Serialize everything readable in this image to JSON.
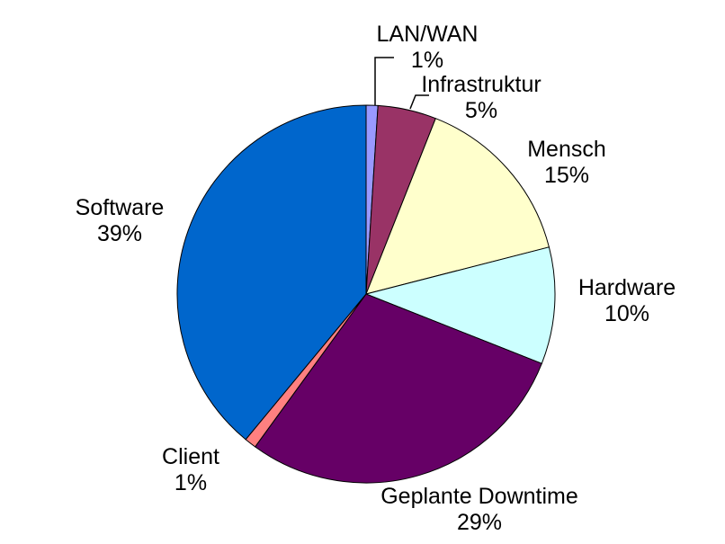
{
  "chart_data": {
    "type": "pie",
    "title": "",
    "start_angle_deg": 0,
    "direction": "clockwise",
    "total": 100,
    "outline_color": "#000000",
    "label_color": "#000000",
    "background": "#FFFFFF",
    "legend_position": "none",
    "slices": [
      {
        "label": "LAN/WAN",
        "value": 1,
        "pct_label": "1%",
        "color": "#9999FF"
      },
      {
        "label": "Infrastruktur",
        "value": 5,
        "pct_label": "5%",
        "color": "#993366"
      },
      {
        "label": "Mensch",
        "value": 15,
        "pct_label": "15%",
        "color": "#FFFFCC"
      },
      {
        "label": "Hardware",
        "value": 10,
        "pct_label": "10%",
        "color": "#CCFFFF"
      },
      {
        "label": "Geplante Downtime",
        "value": 29,
        "pct_label": "29%",
        "color": "#660066"
      },
      {
        "label": "Client",
        "value": 1,
        "pct_label": "1%",
        "color": "#FF8080"
      },
      {
        "label": "Software",
        "value": 39,
        "pct_label": "39%",
        "color": "#0066CC"
      }
    ]
  }
}
